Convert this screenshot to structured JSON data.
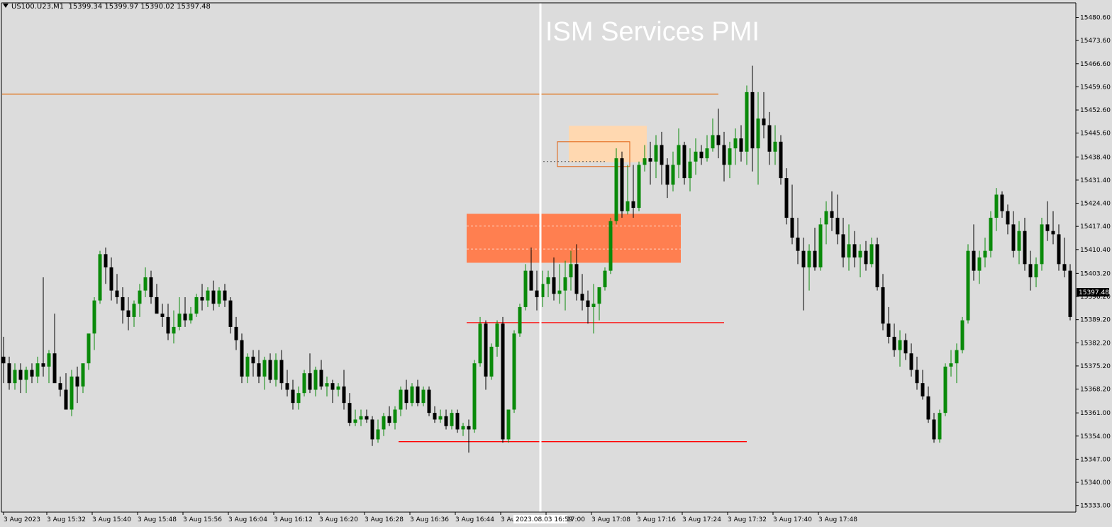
{
  "header": {
    "symbol": "US100.U23,M1",
    "ohlc": "15399.34 15399.97 15390.02 15397.48"
  },
  "event_label": "ISM Services PMI",
  "colors": {
    "background": "#dcdcdc",
    "bull": "#0a8a0a",
    "bear": "#000000",
    "supply_zone": "#ff7f50",
    "small_zone": "#ffd8b0",
    "resistance_line": "#e07820",
    "support_line": "#ff0000",
    "event_line": "#ffffff"
  },
  "chart_data": {
    "type": "candlestick",
    "symbol": "US100.U23",
    "timeframe": "M1",
    "last_price": "15397.48",
    "y_ticks": [
      "15480.60",
      "15473.60",
      "15466.60",
      "15459.60",
      "15452.60",
      "15445.60",
      "15438.40",
      "15431.40",
      "15424.40",
      "15417.40",
      "15410.40",
      "15403.20",
      "15396.20",
      "15389.20",
      "15382.20",
      "15375.20",
      "15368.20",
      "15361.00",
      "15354.00",
      "15347.00",
      "15340.00",
      "15333.00"
    ],
    "x_ticks": [
      "3 Aug 2023",
      "3 Aug 15:32",
      "3 Aug 15:40",
      "3 Aug 15:48",
      "3 Aug 15:56",
      "3 Aug 16:04",
      "3 Aug 16:12",
      "3 Aug 16:20",
      "3 Aug 16:28",
      "3 Aug 16:36",
      "3 Aug 16:44",
      "3 Aug 16:52",
      "3 Aug 17:00",
      "3 Aug 17:08",
      "3 Aug 17:16",
      "3 Aug 17:24",
      "3 Aug 17:32",
      "3 Aug 17:40",
      "3 Aug 17:48"
    ],
    "event_time_label": "2023.08.03 16:59",
    "ylim": [
      15331,
      15485
    ],
    "n_bars": 151,
    "levels": [
      {
        "name": "resistance",
        "price": 15457.4,
        "from_bar": 0,
        "to_bar": 126
      },
      {
        "name": "support-upper",
        "price": 15388.3,
        "from_bar": 82,
        "to_bar": 127
      },
      {
        "name": "support-lower",
        "price": 15352.3,
        "from_bar": 70,
        "to_bar": 131
      }
    ],
    "zones": [
      {
        "name": "supply-zone",
        "from_bar": 82,
        "to_bar": 119,
        "top": 15421.2,
        "bottom": 15406.4
      },
      {
        "name": "small-zone-fill",
        "from_bar": 100,
        "to_bar": 113,
        "top": 15447.8,
        "bottom": 15436.8
      },
      {
        "name": "small-zone-outline",
        "from_bar": 98,
        "to_bar": 110,
        "top": 15443.0,
        "bottom": 15435.5
      }
    ],
    "bars": [
      [
        15378.0,
        15384.0,
        15370.0,
        15376.0
      ],
      [
        15376.0,
        15378.0,
        15368.0,
        15370.0
      ],
      [
        15370.0,
        15376.0,
        15368.0,
        15374.0
      ],
      [
        15374.0,
        15376.0,
        15367.0,
        15371.0
      ],
      [
        15371.0,
        15375.0,
        15367.0,
        15374.0
      ],
      [
        15374.0,
        15376.0,
        15370.0,
        15372.0
      ],
      [
        15372.0,
        15378.0,
        15370.0,
        15376.0
      ],
      [
        15376.0,
        15402.0,
        15372.0,
        15375.0
      ],
      [
        15375.0,
        15380.0,
        15370.0,
        15379.0
      ],
      [
        15379.0,
        15391.0,
        15373.0,
        15370.0
      ],
      [
        15370.0,
        15372.0,
        15366.0,
        15368.0
      ],
      [
        15368.0,
        15373.0,
        15364.0,
        15362.0
      ],
      [
        15362.0,
        15374.0,
        15360.0,
        15372.0
      ],
      [
        15372.0,
        15375.0,
        15364.0,
        15369.0
      ],
      [
        15369.0,
        15374.0,
        15367.0,
        15376.0
      ],
      [
        15376.0,
        15382.0,
        15374.0,
        15385.0
      ],
      [
        15385.0,
        15396.0,
        15380.0,
        15395.0
      ],
      [
        15395.0,
        15410.0,
        15394.0,
        15409.0
      ],
      [
        15409.0,
        15411.0,
        15400.0,
        15405.0
      ],
      [
        15405.0,
        15408.0,
        15395.0,
        15398.0
      ],
      [
        15398.0,
        15403.0,
        15394.0,
        15396.0
      ],
      [
        15396.0,
        15399.0,
        15388.0,
        15392.0
      ],
      [
        15392.0,
        15396.0,
        15386.0,
        15390.0
      ],
      [
        15390.0,
        15395.0,
        15387.0,
        15394.0
      ],
      [
        15394.0,
        15400.0,
        15390.0,
        15398.0
      ],
      [
        15398.0,
        15405.0,
        15396.0,
        15402.0
      ],
      [
        15402.0,
        15404.0,
        15394.0,
        15396.0
      ],
      [
        15396.0,
        15400.0,
        15392.0,
        15391.0
      ],
      [
        15391.0,
        15394.0,
        15387.0,
        15390.0
      ],
      [
        15390.0,
        15394.0,
        15383.0,
        15385.0
      ],
      [
        15385.0,
        15392.0,
        15382.0,
        15387.0
      ],
      [
        15387.0,
        15396.0,
        15386.0,
        15391.0
      ],
      [
        15391.0,
        15396.0,
        15387.0,
        15389.0
      ],
      [
        15389.0,
        15393.0,
        15388.0,
        15391.0
      ],
      [
        15391.0,
        15397.0,
        15390.0,
        15396.0
      ],
      [
        15396.0,
        15400.0,
        15392.0,
        15395.0
      ],
      [
        15395.0,
        15399.0,
        15393.0,
        15398.0
      ],
      [
        15398.0,
        15401.0,
        15392.0,
        15394.0
      ],
      [
        15394.0,
        15399.0,
        15393.0,
        15398.0
      ],
      [
        15398.0,
        15400.0,
        15393.0,
        15395.0
      ],
      [
        15395.0,
        15396.0,
        15385.0,
        15387.0
      ],
      [
        15387.0,
        15390.0,
        15380.0,
        15383.0
      ],
      [
        15383.0,
        15385.0,
        15370.0,
        15372.0
      ],
      [
        15372.0,
        15379.0,
        15370.0,
        15378.0
      ],
      [
        15378.0,
        15380.0,
        15372.0,
        15376.0
      ],
      [
        15376.0,
        15380.0,
        15370.0,
        15372.0
      ],
      [
        15372.0,
        15378.0,
        15368.0,
        15377.0
      ],
      [
        15377.0,
        15379.0,
        15370.0,
        15371.0
      ],
      [
        15371.0,
        15379.0,
        15369.0,
        15377.0
      ],
      [
        15377.0,
        15380.0,
        15368.0,
        15370.0
      ],
      [
        15370.0,
        15374.0,
        15366.0,
        15368.0
      ],
      [
        15368.0,
        15371.0,
        15362.0,
        15364.0
      ],
      [
        15364.0,
        15369.0,
        15362.0,
        15367.0
      ],
      [
        15367.0,
        15374.0,
        15366.0,
        15373.0
      ],
      [
        15373.0,
        15379.0,
        15367.0,
        15368.0
      ],
      [
        15368.0,
        15375.0,
        15366.0,
        15374.0
      ],
      [
        15374.0,
        15377.0,
        15368.0,
        15369.0
      ],
      [
        15369.0,
        15372.0,
        15366.0,
        15370.0
      ],
      [
        15370.0,
        15371.0,
        15364.0,
        15368.0
      ],
      [
        15368.0,
        15370.0,
        15366.0,
        15369.0
      ],
      [
        15369.0,
        15374.0,
        15362.0,
        15364.0
      ],
      [
        15364.0,
        15367.0,
        15357.0,
        15358.0
      ],
      [
        15358.0,
        15362.0,
        15357.0,
        15359.0
      ],
      [
        15359.0,
        15362.0,
        15357.0,
        15360.0
      ],
      [
        15360.0,
        15362.0,
        15358.0,
        15359.0
      ],
      [
        15359.0,
        15360.0,
        15351.0,
        15353.0
      ],
      [
        15353.0,
        15359.0,
        15352.0,
        15356.0
      ],
      [
        15356.0,
        15361.0,
        15354.0,
        15360.0
      ],
      [
        15360.0,
        15363.0,
        15357.0,
        15358.0
      ],
      [
        15358.0,
        15363.0,
        15356.0,
        15362.0
      ],
      [
        15362.0,
        15369.0,
        15360.0,
        15368.0
      ],
      [
        15368.0,
        15371.0,
        15362.0,
        15364.0
      ],
      [
        15364.0,
        15370.0,
        15363.0,
        15369.0
      ],
      [
        15369.0,
        15371.0,
        15363.0,
        15364.0
      ],
      [
        15364.0,
        15369.0,
        15363.0,
        15368.0
      ],
      [
        15368.0,
        15369.0,
        15360.0,
        15361.0
      ],
      [
        15361.0,
        15363.0,
        15358.0,
        15359.0
      ],
      [
        15359.0,
        15362.0,
        15358.0,
        15360.0
      ],
      [
        15360.0,
        15362.0,
        15356.0,
        15357.0
      ],
      [
        15357.0,
        15362.0,
        15356.0,
        15361.0
      ],
      [
        15361.0,
        15362.0,
        15355.0,
        15356.0
      ],
      [
        15356.0,
        15358.0,
        15354.0,
        15357.0
      ],
      [
        15357.0,
        15359.0,
        15349.0,
        15356.0
      ],
      [
        15356.0,
        15377.0,
        15355.0,
        15376.0
      ],
      [
        15376.0,
        15390.0,
        15375.0,
        15388.0
      ],
      [
        15388.0,
        15389.0,
        15368.0,
        15372.0
      ],
      [
        15372.0,
        15382.0,
        15371.0,
        15381.0
      ],
      [
        15381.0,
        15389.0,
        15378.0,
        15388.0
      ],
      [
        15388.0,
        15390.0,
        15352.0,
        15353.0
      ],
      [
        15353.0,
        15362.0,
        15352.0,
        15362.0
      ],
      [
        15362.0,
        15386.0,
        15361.0,
        15385.0
      ],
      [
        15385.0,
        15394.0,
        15384.0,
        15393.0
      ],
      [
        15393.0,
        15406.0,
        15392.0,
        15404.0
      ],
      [
        15404.0,
        15411.0,
        15400.0,
        15398.0
      ],
      [
        15398.0,
        15404.0,
        15392.0,
        15396.0
      ],
      [
        15396.0,
        15404.0,
        15393.0,
        15400.0
      ],
      [
        15400.0,
        15404.0,
        15396.0,
        15402.0
      ],
      [
        15402.0,
        15408.0,
        15395.0,
        15397.0
      ],
      [
        15397.0,
        15406.0,
        15394.0,
        15398.0
      ],
      [
        15398.0,
        15407.0,
        15392.0,
        15402.0
      ],
      [
        15402.0,
        15410.0,
        15398.0,
        15406.0
      ],
      [
        15406.0,
        15412.0,
        15395.0,
        15397.0
      ],
      [
        15397.0,
        15403.0,
        15392.0,
        15395.0
      ],
      [
        15395.0,
        15398.0,
        15388.0,
        15393.0
      ],
      [
        15393.0,
        15400.0,
        15385.0,
        15394.0
      ],
      [
        15394.0,
        15395.0,
        15389.0,
        15399.0
      ],
      [
        15399.0,
        15405.0,
        15398.0,
        15404.0
      ],
      [
        15404.0,
        15420.0,
        15403.0,
        15419.0
      ],
      [
        15419.0,
        15441.0,
        15418.0,
        15438.0
      ],
      [
        15438.0,
        15440.0,
        15420.0,
        15422.0
      ],
      [
        15422.0,
        15436.0,
        15421.0,
        15425.0
      ],
      [
        15425.0,
        15436.0,
        15420.0,
        15423.0
      ],
      [
        15423.0,
        15437.0,
        15422.0,
        15436.0
      ],
      [
        15436.0,
        15442.0,
        15434.0,
        15438.0
      ],
      [
        15438.0,
        15443.0,
        15430.0,
        15437.0
      ],
      [
        15437.0,
        15445.0,
        15432.0,
        15442.0
      ],
      [
        15442.0,
        15446.0,
        15430.0,
        15436.0
      ],
      [
        15436.0,
        15438.0,
        15426.0,
        15430.0
      ],
      [
        15430.0,
        15440.0,
        15428.0,
        15436.0
      ],
      [
        15436.0,
        15447.0,
        15432.0,
        15442.0
      ],
      [
        15442.0,
        15443.0,
        15430.0,
        15432.0
      ],
      [
        15432.0,
        15441.0,
        15428.0,
        15437.0
      ],
      [
        15437.0,
        15444.0,
        15433.0,
        15440.0
      ],
      [
        15440.0,
        15442.0,
        15436.0,
        15438.0
      ],
      [
        15438.0,
        15445.0,
        15437.0,
        15441.0
      ],
      [
        15441.0,
        15450.0,
        15440.0,
        15445.0
      ],
      [
        15445.0,
        15453.0,
        15438.0,
        15442.0
      ],
      [
        15442.0,
        15446.0,
        15431.0,
        15436.0
      ],
      [
        15436.0,
        15443.0,
        15432.0,
        15441.0
      ],
      [
        15441.0,
        15447.0,
        15436.0,
        15444.0
      ],
      [
        15444.0,
        15448.0,
        15437.0,
        15440.0
      ],
      [
        15440.0,
        15460.0,
        15436.0,
        15458.0
      ],
      [
        15458.0,
        15466.0,
        15434.0,
        15441.0
      ],
      [
        15441.0,
        15458.0,
        15430.0,
        15450.0
      ],
      [
        15450.0,
        15458.0,
        15444.0,
        15448.0
      ],
      [
        15448.0,
        15452.0,
        15436.0,
        15440.0
      ],
      [
        15440.0,
        15448.0,
        15436.0,
        15443.0
      ],
      [
        15443.0,
        15445.0,
        15430.0,
        15432.0
      ],
      [
        15432.0,
        15435.0,
        15418.0,
        15420.0
      ],
      [
        15420.0,
        15430.0,
        15412.0,
        15414.0
      ],
      [
        15414.0,
        15420.0,
        15406.0,
        15410.0
      ],
      [
        15410.0,
        15414.0,
        15392.0,
        15405.0
      ],
      [
        15405.0,
        15412.0,
        15398.0,
        15410.0
      ],
      [
        15410.0,
        15417.0,
        15404.0,
        15405.0
      ],
      [
        15405.0,
        15420.0,
        15404.0,
        15418.0
      ],
      [
        15418.0,
        15425.0,
        15412.0,
        15422.0
      ],
      [
        15422.0,
        15428.0,
        15416.0,
        15420.0
      ],
      [
        15420.0,
        15427.0,
        15412.0,
        15415.0
      ],
      [
        15415.0,
        15420.0,
        15405.0,
        15408.0
      ],
      [
        15408.0,
        15418.0,
        15404.0,
        15412.0
      ]
    ],
    "tail_bars": [
      [
        15412.0,
        15416.0,
        15405.0,
        15408.0
      ],
      [
        15408.0,
        15412.0,
        15402.0,
        15410.0
      ],
      [
        15410.0,
        15413.0,
        15404.0,
        15406.0
      ],
      [
        15406.0,
        15414.0,
        15405.0,
        15412.0
      ],
      [
        15412.0,
        15414.0,
        15398.0,
        15399.0
      ],
      [
        15399.0,
        15403.0,
        15386.0,
        15388.0
      ],
      [
        15388.0,
        15393.0,
        15382.0,
        15384.0
      ],
      [
        15384.0,
        15388.0,
        15378.0,
        15380.0
      ],
      [
        15380.0,
        15386.0,
        15375.0,
        15383.0
      ],
      [
        15383.0,
        15385.0,
        15377.0,
        15379.0
      ],
      [
        15379.0,
        15382.0,
        15372.0,
        15374.0
      ],
      [
        15374.0,
        15378.0,
        15368.0,
        15370.0
      ],
      [
        15370.0,
        15374.0,
        15365.0,
        15366.0
      ],
      [
        15366.0,
        15369.0,
        15358.0,
        15359.0
      ],
      [
        15359.0,
        15361.0,
        15352.0,
        15353.0
      ],
      [
        15353.0,
        15362.0,
        15352.0,
        15361.0
      ],
      [
        15361.0,
        15376.0,
        15360.0,
        15375.0
      ],
      [
        15375.0,
        15380.0,
        15372.0,
        15376.0
      ],
      [
        15376.0,
        15382.0,
        15370.0,
        15380.0
      ],
      [
        15380.0,
        15390.0,
        15379.0,
        15389.0
      ],
      [
        15389.0,
        15412.0,
        15388.0,
        15410.0
      ],
      [
        15410.0,
        15418.0,
        15401.0,
        15404.0
      ],
      [
        15404.0,
        15410.0,
        15400.0,
        15408.0
      ],
      [
        15408.0,
        15414.0,
        15405.0,
        15410.0
      ],
      [
        15410.0,
        15422.0,
        15408.0,
        15420.0
      ],
      [
        15420.0,
        15429.0,
        15416.0,
        15427.0
      ],
      [
        15427.0,
        15428.0,
        15420.0,
        15422.0
      ],
      [
        15422.0,
        15424.0,
        15415.0,
        15418.0
      ],
      [
        15418.0,
        15422.0,
        15408.0,
        15410.0
      ],
      [
        15410.0,
        15419.0,
        15406.0,
        15416.0
      ],
      [
        15416.0,
        15420.0,
        15404.0,
        15406.0
      ],
      [
        15406.0,
        15410.0,
        15398.0,
        15402.0
      ],
      [
        15402.0,
        15408.0,
        15399.0,
        15406.0
      ],
      [
        15406.0,
        15420.0,
        15404.0,
        15418.0
      ],
      [
        15418.0,
        15425.0,
        15413.0,
        15416.0
      ],
      [
        15416.0,
        15422.0,
        15412.0,
        15415.0
      ],
      [
        15415.0,
        15418.0,
        15404.0,
        15406.0
      ],
      [
        15406.0,
        15414.0,
        15402.0,
        15404.0
      ],
      [
        15404.0,
        15406.0,
        15389.0,
        15390.0
      ],
      [
        15390.0,
        15395.0,
        15385.0,
        15391.0
      ],
      [
        15391.0,
        15401.0,
        15390.0,
        15400.0
      ],
      [
        15399.34,
        15399.97,
        15390.02,
        15397.48
      ]
    ]
  }
}
